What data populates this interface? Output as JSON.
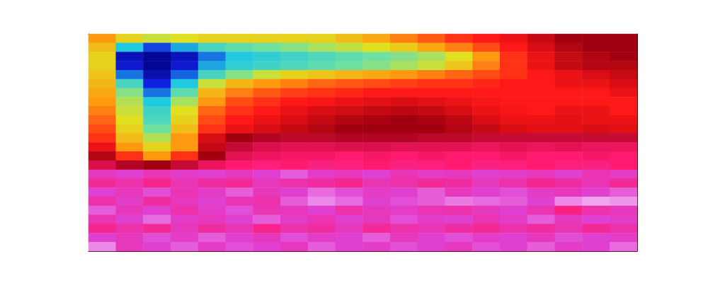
{
  "chart_data": {
    "type": "heatmap",
    "tick_labels": false,
    "zlim": [
      0,
      1
    ],
    "cells": [
      [
        0.5,
        0.42,
        0.38,
        0.4,
        0.42,
        0.42,
        0.42,
        0.42,
        0.42,
        0.45,
        0.48,
        0.52,
        0.55,
        0.58,
        0.6,
        0.62,
        0.66,
        0.7,
        0.7,
        0.7
      ],
      [
        0.45,
        0.2,
        0.12,
        0.18,
        0.25,
        0.28,
        0.3,
        0.32,
        0.35,
        0.37,
        0.4,
        0.43,
        0.48,
        0.52,
        0.56,
        0.6,
        0.64,
        0.68,
        0.7,
        0.7
      ],
      [
        0.42,
        0.06,
        0.02,
        0.06,
        0.15,
        0.2,
        0.22,
        0.24,
        0.26,
        0.28,
        0.3,
        0.32,
        0.35,
        0.4,
        0.5,
        0.58,
        0.62,
        0.66,
        0.68,
        0.7
      ],
      [
        0.42,
        0.08,
        0.02,
        0.08,
        0.18,
        0.22,
        0.24,
        0.26,
        0.28,
        0.3,
        0.32,
        0.35,
        0.38,
        0.44,
        0.52,
        0.58,
        0.62,
        0.66,
        0.68,
        0.68
      ],
      [
        0.44,
        0.15,
        0.05,
        0.14,
        0.25,
        0.32,
        0.38,
        0.42,
        0.44,
        0.46,
        0.48,
        0.5,
        0.52,
        0.54,
        0.56,
        0.58,
        0.6,
        0.62,
        0.64,
        0.66
      ],
      [
        0.46,
        0.25,
        0.1,
        0.2,
        0.38,
        0.46,
        0.5,
        0.52,
        0.54,
        0.55,
        0.56,
        0.57,
        0.58,
        0.58,
        0.59,
        0.6,
        0.6,
        0.62,
        0.62,
        0.64
      ],
      [
        0.48,
        0.32,
        0.15,
        0.28,
        0.46,
        0.52,
        0.55,
        0.57,
        0.58,
        0.59,
        0.6,
        0.6,
        0.6,
        0.6,
        0.6,
        0.6,
        0.6,
        0.6,
        0.6,
        0.62
      ],
      [
        0.5,
        0.36,
        0.2,
        0.35,
        0.5,
        0.56,
        0.58,
        0.6,
        0.61,
        0.62,
        0.63,
        0.64,
        0.63,
        0.62,
        0.61,
        0.6,
        0.6,
        0.6,
        0.6,
        0.6
      ],
      [
        0.52,
        0.38,
        0.24,
        0.4,
        0.54,
        0.58,
        0.6,
        0.62,
        0.64,
        0.65,
        0.66,
        0.67,
        0.66,
        0.64,
        0.62,
        0.61,
        0.6,
        0.62,
        0.62,
        0.6
      ],
      [
        0.54,
        0.4,
        0.26,
        0.42,
        0.56,
        0.6,
        0.62,
        0.64,
        0.66,
        0.68,
        0.69,
        0.7,
        0.69,
        0.67,
        0.64,
        0.62,
        0.62,
        0.63,
        0.62,
        0.62
      ],
      [
        0.56,
        0.42,
        0.3,
        0.45,
        0.58,
        0.62,
        0.64,
        0.66,
        0.68,
        0.7,
        0.7,
        0.7,
        0.7,
        0.68,
        0.66,
        0.64,
        0.63,
        0.63,
        0.64,
        0.63
      ],
      [
        0.58,
        0.45,
        0.36,
        0.5,
        0.64,
        0.7,
        0.72,
        0.73,
        0.73,
        0.72,
        0.72,
        0.72,
        0.73,
        0.73,
        0.74,
        0.74,
        0.74,
        0.74,
        0.74,
        0.74
      ],
      [
        0.62,
        0.5,
        0.42,
        0.5,
        0.66,
        0.74,
        0.76,
        0.77,
        0.77,
        0.76,
        0.76,
        0.77,
        0.77,
        0.77,
        0.78,
        0.77,
        0.78,
        0.77,
        0.78,
        0.78
      ],
      [
        0.68,
        0.58,
        0.5,
        0.58,
        0.7,
        0.77,
        0.78,
        0.79,
        0.79,
        0.8,
        0.79,
        0.8,
        0.79,
        0.8,
        0.8,
        0.79,
        0.8,
        0.8,
        0.79,
        0.8
      ],
      [
        0.76,
        0.72,
        0.7,
        0.74,
        0.78,
        0.8,
        0.81,
        0.8,
        0.82,
        0.81,
        0.8,
        0.82,
        0.81,
        0.8,
        0.82,
        0.81,
        0.8,
        0.81,
        0.82,
        0.8
      ],
      [
        0.88,
        0.9,
        0.87,
        0.89,
        0.9,
        0.88,
        0.9,
        0.92,
        0.89,
        0.88,
        0.9,
        0.87,
        0.89,
        0.88,
        0.9,
        0.89,
        0.88,
        0.9,
        0.87,
        0.89
      ],
      [
        0.84,
        0.86,
        0.83,
        0.87,
        0.85,
        0.84,
        0.88,
        0.86,
        0.85,
        0.83,
        0.87,
        0.86,
        0.84,
        0.85,
        0.88,
        0.86,
        0.83,
        0.85,
        0.87,
        0.84
      ],
      [
        0.9,
        0.88,
        0.91,
        0.87,
        0.89,
        0.92,
        0.88,
        0.9,
        0.93,
        0.91,
        0.89,
        0.9,
        0.92,
        0.88,
        0.9,
        0.91,
        0.89,
        0.88,
        0.9,
        0.92
      ],
      [
        0.86,
        0.89,
        0.85,
        0.88,
        0.9,
        0.87,
        0.86,
        0.92,
        0.95,
        0.93,
        0.9,
        0.91,
        0.92,
        0.94,
        0.93,
        0.92,
        0.9,
        0.95,
        0.97,
        0.96
      ],
      [
        0.92,
        0.88,
        0.9,
        0.86,
        0.89,
        0.91,
        0.87,
        0.88,
        0.9,
        0.86,
        0.88,
        0.89,
        0.87,
        0.86,
        0.88,
        0.9,
        0.87,
        0.82,
        0.86,
        0.88
      ],
      [
        0.87,
        0.9,
        0.93,
        0.89,
        0.88,
        0.9,
        0.92,
        0.89,
        0.87,
        0.9,
        0.88,
        0.91,
        0.89,
        0.9,
        0.87,
        0.89,
        0.92,
        0.88,
        0.9,
        0.89
      ],
      [
        0.83,
        0.86,
        0.84,
        0.88,
        0.85,
        0.87,
        0.83,
        0.86,
        0.85,
        0.88,
        0.84,
        0.86,
        0.87,
        0.85,
        0.84,
        0.86,
        0.85,
        0.87,
        0.84,
        0.86
      ],
      [
        0.9,
        0.88,
        0.91,
        0.89,
        0.92,
        0.9,
        0.88,
        0.91,
        0.89,
        0.9,
        0.92,
        0.88,
        0.9,
        0.91,
        0.89,
        0.9,
        0.88,
        0.91,
        0.9,
        0.89
      ],
      [
        0.95,
        0.88,
        0.9,
        0.92,
        0.89,
        0.91,
        0.9,
        0.88,
        0.92,
        0.9,
        0.89,
        0.91,
        0.9,
        0.88,
        0.91,
        0.9,
        0.92,
        0.89,
        0.9,
        0.93
      ]
    ]
  }
}
